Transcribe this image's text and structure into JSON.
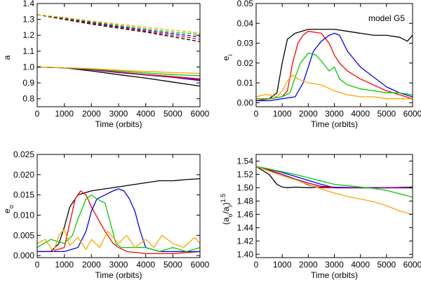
{
  "chart_data": [
    {
      "type": "line",
      "panel": "top-left",
      "title": "",
      "annotation": "",
      "xlabel": "Time (orbits)",
      "ylabel": "a",
      "xlim": [
        0,
        6000
      ],
      "ylim": [
        0.75,
        1.4
      ],
      "xticks": [
        0,
        1000,
        2000,
        3000,
        4000,
        5000,
        6000
      ],
      "xtick_labels": [
        "0",
        "1000",
        "2000",
        "3000",
        "4000",
        "5000",
        "6000"
      ],
      "yticks": [
        0.8,
        0.9,
        1.0,
        1.1,
        1.2,
        1.3,
        1.4
      ],
      "ytick_labels": [
        "0.8",
        "0.9",
        "1.0",
        "1.1",
        "1.2",
        "1.3",
        "1.4"
      ],
      "series": [
        {
          "name": "black inner",
          "color": "#000000",
          "dash": "solid",
          "x": [
            0,
            1000,
            2000,
            3000,
            4000,
            5000,
            6000
          ],
          "y": [
            1.0,
            0.995,
            0.975,
            0.952,
            0.93,
            0.905,
            0.88
          ]
        },
        {
          "name": "blue inner",
          "color": "#0000ff",
          "dash": "solid",
          "x": [
            0,
            1000,
            2000,
            3000,
            4000,
            5000,
            6000
          ],
          "y": [
            1.0,
            0.995,
            0.985,
            0.965,
            0.95,
            0.935,
            0.915
          ]
        },
        {
          "name": "red inner",
          "color": "#ff0000",
          "dash": "solid",
          "x": [
            0,
            1000,
            2000,
            3000,
            4000,
            5000,
            6000
          ],
          "y": [
            1.0,
            0.995,
            0.985,
            0.968,
            0.952,
            0.94,
            0.925
          ]
        },
        {
          "name": "purple inner",
          "color": "#8b008b",
          "dash": "solid",
          "x": [
            0,
            1000,
            2000,
            3000,
            4000,
            5000,
            6000
          ],
          "y": [
            1.0,
            0.995,
            0.982,
            0.965,
            0.95,
            0.935,
            0.92
          ]
        },
        {
          "name": "green inner",
          "color": "#00cc00",
          "dash": "solid",
          "x": [
            0,
            1000,
            2000,
            3000,
            4000,
            5000,
            6000
          ],
          "y": [
            1.0,
            0.995,
            0.988,
            0.975,
            0.962,
            0.952,
            0.945
          ]
        },
        {
          "name": "orange inner",
          "color": "#ffa500",
          "dash": "solid",
          "x": [
            0,
            1000,
            2000,
            3000,
            4000,
            5000,
            6000
          ],
          "y": [
            1.0,
            0.996,
            0.99,
            0.98,
            0.972,
            0.965,
            0.96
          ]
        },
        {
          "name": "black outer",
          "color": "#000000",
          "dash": "dashed",
          "x": [
            0,
            1000,
            2000,
            3000,
            4000,
            5000,
            6000
          ],
          "y": [
            1.33,
            1.3,
            1.27,
            1.245,
            1.22,
            1.19,
            1.16
          ]
        },
        {
          "name": "red outer",
          "color": "#ff0000",
          "dash": "dashed",
          "x": [
            0,
            1000,
            2000,
            3000,
            4000,
            5000,
            6000
          ],
          "y": [
            1.33,
            1.305,
            1.275,
            1.25,
            1.225,
            1.2,
            1.175
          ]
        },
        {
          "name": "blue outer",
          "color": "#0000ff",
          "dash": "dashed",
          "x": [
            0,
            1000,
            2000,
            3000,
            4000,
            5000,
            6000
          ],
          "y": [
            1.33,
            1.308,
            1.28,
            1.255,
            1.232,
            1.21,
            1.19
          ]
        },
        {
          "name": "green outer",
          "color": "#00cc00",
          "dash": "dashed",
          "x": [
            0,
            1000,
            2000,
            3000,
            4000,
            5000,
            6000
          ],
          "y": [
            1.33,
            1.31,
            1.285,
            1.262,
            1.24,
            1.22,
            1.205
          ]
        },
        {
          "name": "orange outer",
          "color": "#ffa500",
          "dash": "dashed",
          "x": [
            0,
            1000,
            2000,
            3000,
            4000,
            5000,
            6000
          ],
          "y": [
            1.33,
            1.312,
            1.29,
            1.27,
            1.25,
            1.232,
            1.215
          ]
        }
      ]
    },
    {
      "type": "line",
      "panel": "top-right",
      "title": "",
      "annotation": "model G5",
      "xlabel": "Time (orbits)",
      "ylabel": "e",
      "ylabel_sub": "i",
      "xlim": [
        0,
        6000
      ],
      "ylim": [
        -0.002,
        0.05
      ],
      "xticks": [
        0,
        1000,
        2000,
        3000,
        4000,
        5000,
        6000
      ],
      "xtick_labels": [
        "0",
        "1000",
        "2000",
        "3000",
        "4000",
        "5000",
        "6000"
      ],
      "yticks": [
        0.0,
        0.01,
        0.02,
        0.03,
        0.04,
        0.05
      ],
      "ytick_labels": [
        "0.00",
        "0.01",
        "0.02",
        "0.03",
        "0.04",
        "0.05"
      ],
      "series": [
        {
          "name": "black",
          "color": "#000000",
          "x": [
            0,
            500,
            800,
            1000,
            1200,
            1500,
            2000,
            2500,
            3000,
            3500,
            4000,
            4500,
            5000,
            5500,
            5800,
            6000
          ],
          "y": [
            0.001,
            0.002,
            0.005,
            0.02,
            0.032,
            0.035,
            0.037,
            0.037,
            0.037,
            0.036,
            0.035,
            0.034,
            0.034,
            0.033,
            0.031,
            0.034
          ]
        },
        {
          "name": "red",
          "color": "#ff0000",
          "x": [
            0,
            500,
            1000,
            1200,
            1400,
            1600,
            1800,
            2000,
            2500,
            2800,
            3000,
            3200,
            3500,
            4000,
            4500,
            5000,
            5500,
            6000
          ],
          "y": [
            0.001,
            0.002,
            0.003,
            0.006,
            0.02,
            0.03,
            0.034,
            0.036,
            0.035,
            0.03,
            0.024,
            0.02,
            0.016,
            0.012,
            0.009,
            0.006,
            0.004,
            0.002
          ]
        },
        {
          "name": "blue",
          "color": "#0000ff",
          "x": [
            0,
            500,
            1000,
            1500,
            1800,
            2000,
            2200,
            2500,
            2800,
            3000,
            3200,
            3500,
            4000,
            4500,
            5000,
            5500,
            6000
          ],
          "y": [
            0.001,
            0.001,
            0.002,
            0.003,
            0.01,
            0.018,
            0.026,
            0.031,
            0.034,
            0.035,
            0.034,
            0.026,
            0.018,
            0.013,
            0.008,
            0.005,
            0.003
          ]
        },
        {
          "name": "green",
          "color": "#00cc00",
          "x": [
            0,
            500,
            1000,
            1300,
            1500,
            1700,
            2000,
            2300,
            2500,
            2800,
            3000,
            3200,
            3500,
            4000,
            4500,
            5000,
            5500,
            6000
          ],
          "y": [
            0.002,
            0.002,
            0.003,
            0.005,
            0.013,
            0.02,
            0.025,
            0.024,
            0.021,
            0.016,
            0.018,
            0.012,
            0.009,
            0.007,
            0.006,
            0.005,
            0.005,
            0.004
          ]
        },
        {
          "name": "orange",
          "color": "#ffa500",
          "x": [
            0,
            300,
            500,
            800,
            1000,
            1200,
            1400,
            1600,
            2000,
            2500,
            3000,
            3500,
            4000,
            4500,
            5000,
            5500,
            6000
          ],
          "y": [
            0.003,
            0.004,
            0.004,
            0.003,
            0.006,
            0.011,
            0.014,
            0.012,
            0.01,
            0.009,
            0.006,
            0.004,
            0.003,
            0.003,
            0.002,
            0.002,
            0.002
          ]
        }
      ]
    },
    {
      "type": "line",
      "panel": "bottom-left",
      "title": "",
      "annotation": "",
      "xlabel": "Time (orbits)",
      "ylabel": "e",
      "ylabel_sub": "o",
      "xlim": [
        0,
        6000
      ],
      "ylim": [
        -0.0005,
        0.025
      ],
      "xticks": [
        0,
        1000,
        2000,
        3000,
        4000,
        5000,
        6000
      ],
      "xtick_labels": [
        "0",
        "1000",
        "2000",
        "3000",
        "4000",
        "5000",
        "6000"
      ],
      "yticks": [
        0.0,
        0.005,
        0.01,
        0.015,
        0.02,
        0.025
      ],
      "ytick_labels": [
        "0.000",
        "0.005",
        "0.010",
        "0.015",
        "0.020",
        "0.025"
      ],
      "series": [
        {
          "name": "black",
          "color": "#000000",
          "x": [
            0,
            500,
            800,
            1000,
            1200,
            1500,
            2000,
            2500,
            3000,
            3500,
            4000,
            4500,
            5000,
            5500,
            6000
          ],
          "y": [
            0.001,
            0.001,
            0.003,
            0.007,
            0.012,
            0.015,
            0.016,
            0.0165,
            0.017,
            0.0175,
            0.018,
            0.0185,
            0.0185,
            0.0188,
            0.019
          ]
        },
        {
          "name": "red",
          "color": "#ff0000",
          "x": [
            0,
            500,
            1000,
            1200,
            1400,
            1600,
            1800,
            2000,
            2500,
            2800,
            3000,
            3300,
            3600,
            4000,
            5000,
            6000
          ],
          "y": [
            0.001,
            0.001,
            0.002,
            0.008,
            0.014,
            0.016,
            0.015,
            0.012,
            0.006,
            0.003,
            0.002,
            0.001,
            0.0008,
            0.0005,
            0.0005,
            0.001
          ]
        },
        {
          "name": "blue",
          "color": "#0000ff",
          "x": [
            0,
            500,
            1000,
            1500,
            1800,
            2000,
            2200,
            2500,
            2800,
            3000,
            3200,
            3400,
            3600,
            3800,
            4000,
            4500,
            5000,
            6000
          ],
          "y": [
            0.001,
            0.001,
            0.001,
            0.002,
            0.006,
            0.011,
            0.014,
            0.015,
            0.016,
            0.0165,
            0.016,
            0.014,
            0.011,
            0.006,
            0.002,
            0.001,
            0.001,
            0.001
          ]
        },
        {
          "name": "green",
          "color": "#00cc00",
          "x": [
            0,
            500,
            1000,
            1300,
            1500,
            1800,
            2000,
            2200,
            2500,
            2700,
            2900,
            3100,
            3500,
            4000,
            4500,
            5000,
            5500,
            6000
          ],
          "y": [
            0.002,
            0.004,
            0.003,
            0.005,
            0.009,
            0.014,
            0.015,
            0.014,
            0.013,
            0.008,
            0.003,
            0.002,
            0.002,
            0.002,
            0.001,
            0.002,
            0.001,
            0.002
          ]
        },
        {
          "name": "orange",
          "color": "#ffa500",
          "x": [
            0,
            300,
            600,
            800,
            1000,
            1200,
            1500,
            1800,
            2000,
            2300,
            2600,
            3000,
            3300,
            3600,
            4000,
            4300,
            4600,
            5000,
            5400,
            5800,
            6000
          ],
          "y": [
            0.003,
            0.004,
            0.001,
            0.005,
            0.0065,
            0.0025,
            0.0045,
            0.0015,
            0.004,
            0.002,
            0.006,
            0.003,
            0.005,
            0.002,
            0.004,
            0.002,
            0.005,
            0.003,
            0.002,
            0.0045,
            0.003
          ]
        }
      ]
    },
    {
      "type": "line",
      "panel": "bottom-right",
      "title": "",
      "annotation": "",
      "xlabel": "Time (orbits)",
      "ylabel": "(a",
      "ylabel_sub": "o",
      "ylabel_mid": "/a",
      "ylabel_sub2": "i",
      "ylabel_end": ")",
      "ylabel_sup": "1.5",
      "xlim": [
        0,
        6000
      ],
      "ylim": [
        1.395,
        1.55
      ],
      "xticks": [
        0,
        1000,
        2000,
        3000,
        4000,
        5000,
        6000
      ],
      "xtick_labels": [
        "0",
        "1000",
        "2000",
        "3000",
        "4000",
        "5000",
        "6000"
      ],
      "yticks": [
        1.4,
        1.42,
        1.44,
        1.46,
        1.48,
        1.5,
        1.52,
        1.54
      ],
      "ytick_labels": [
        "1.40",
        "1.42",
        "1.44",
        "1.46",
        "1.48",
        "1.50",
        "1.52",
        "1.54"
      ],
      "series": [
        {
          "name": "black",
          "color": "#000000",
          "x": [
            0,
            500,
            800,
            1000,
            1200,
            1500,
            2000,
            2500,
            3000,
            4000,
            5000,
            6000
          ],
          "y": [
            1.532,
            1.52,
            1.505,
            1.501,
            1.5,
            1.501,
            1.5,
            1.501,
            1.5,
            1.5,
            1.5,
            1.501
          ]
        },
        {
          "name": "red",
          "color": "#ff0000",
          "x": [
            0,
            500,
            1000,
            1500,
            2000,
            2500,
            3000,
            3500,
            4000,
            5000,
            6000
          ],
          "y": [
            1.532,
            1.527,
            1.52,
            1.513,
            1.504,
            1.5,
            1.5,
            1.5,
            1.5,
            1.5,
            1.5
          ]
        },
        {
          "name": "blue",
          "color": "#0000ff",
          "x": [
            0,
            500,
            1000,
            1500,
            2000,
            2500,
            3000,
            3500,
            4000,
            5000,
            6000
          ],
          "y": [
            1.532,
            1.528,
            1.523,
            1.517,
            1.511,
            1.505,
            1.5,
            1.5,
            1.5,
            1.5,
            1.5
          ]
        },
        {
          "name": "purple",
          "color": "#8b008b",
          "x": [
            0,
            500,
            1000,
            1500,
            2000,
            2500,
            3000,
            4000,
            5000,
            6000
          ],
          "y": [
            1.532,
            1.526,
            1.52,
            1.513,
            1.507,
            1.502,
            1.501,
            1.5,
            1.5,
            1.5
          ]
        },
        {
          "name": "green",
          "color": "#00cc00",
          "x": [
            0,
            500,
            1000,
            1500,
            2000,
            2500,
            3000,
            3500,
            4000,
            4500,
            5000,
            5500,
            6000
          ],
          "y": [
            1.532,
            1.528,
            1.524,
            1.52,
            1.515,
            1.51,
            1.505,
            1.503,
            1.501,
            1.499,
            1.496,
            1.491,
            1.486
          ]
        },
        {
          "name": "orange",
          "color": "#ffa500",
          "x": [
            0,
            500,
            1000,
            1500,
            2000,
            2500,
            3000,
            3500,
            4000,
            4500,
            5000,
            5500,
            6000
          ],
          "y": [
            1.532,
            1.525,
            1.518,
            1.512,
            1.505,
            1.498,
            1.492,
            1.487,
            1.483,
            1.479,
            1.473,
            1.465,
            1.46
          ]
        }
      ]
    }
  ]
}
